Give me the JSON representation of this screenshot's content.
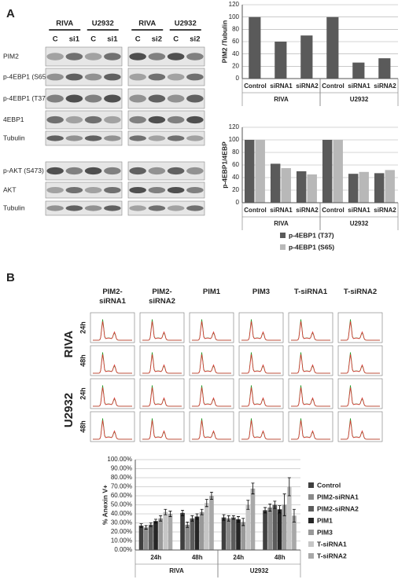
{
  "panel_labels": [
    "A",
    "B"
  ],
  "blot": {
    "group_headers": [
      "RIVA",
      "U2932",
      "RIVA",
      "U2932"
    ],
    "lanes": [
      "C",
      "si1",
      "C",
      "si1",
      "C",
      "si2",
      "C",
      "si2"
    ],
    "rows": [
      "PIM2",
      "p-4EBP1 (S65)",
      "p-4EBP1 (T37)",
      "4EBP1",
      "Tubulin",
      "p-AKT (S473)",
      "AKT",
      "Tubulin"
    ]
  },
  "flow": {
    "columns": [
      "PIM2-siRNA1",
      "PIM2-siRNA2",
      "PIM1",
      "PIM3",
      "T-siRNA1",
      "T-siRNA2"
    ],
    "rows": [
      {
        "line": "RIVA",
        "times": [
          "24h",
          "48h"
        ]
      },
      {
        "line": "U2932",
        "times": [
          "24h",
          "48h"
        ]
      }
    ]
  },
  "chart_data": [
    {
      "type": "bar",
      "ylabel": "PIM2 /Tubulin",
      "categories": [
        "Control",
        "siRNA1",
        "siRNA2",
        "Control",
        "siRNA1",
        "siRNA2"
      ],
      "groups": [
        "RIVA",
        "U2932"
      ],
      "values": [
        100,
        60,
        70,
        100,
        26,
        33
      ],
      "color": "#5a5a5a",
      "ylim": [
        0,
        120
      ],
      "yticks": [
        0,
        20,
        40,
        60,
        80,
        100,
        120
      ],
      "grid": true
    },
    {
      "type": "bar",
      "ylabel": "p-4EBP1/4EBP",
      "categories": [
        "Control",
        "siRNA1",
        "siRNA2",
        "Control",
        "siRNA1",
        "siRNA2"
      ],
      "groups": [
        "RIVA",
        "U2932"
      ],
      "series": [
        {
          "name": "p-4EBP1 (T37)",
          "color": "#5a5a5a",
          "values": [
            100,
            62,
            50,
            100,
            46,
            47
          ]
        },
        {
          "name": "p-4EBP1 (S65)",
          "color": "#b8b8b8",
          "values": [
            100,
            55,
            45,
            100,
            49,
            52
          ]
        }
      ],
      "ylim": [
        0,
        120
      ],
      "yticks": [
        0,
        20,
        40,
        60,
        80,
        100,
        120
      ],
      "grid": true,
      "legend": "bottom"
    },
    {
      "type": "bar",
      "ylabel": "% Anexin V+",
      "categories": [
        "24h",
        "48h",
        "24h",
        "48h"
      ],
      "groups": [
        "RIVA",
        "U2932"
      ],
      "series": [
        {
          "name": "Control",
          "color": "#3f3f3f",
          "values": [
            27,
            41,
            36,
            44
          ],
          "errors": [
            2,
            3,
            3,
            3
          ]
        },
        {
          "name": "PIM2-siRNA1",
          "color": "#8a8a8a",
          "values": [
            25,
            28,
            35,
            47
          ],
          "errors": [
            2,
            3,
            3,
            4
          ]
        },
        {
          "name": "PIM2-siRNA2",
          "color": "#5c5c5c",
          "values": [
            28,
            35,
            36,
            50
          ],
          "errors": [
            2,
            3,
            2,
            4
          ]
        },
        {
          "name": "PIM1",
          "color": "#262626",
          "values": [
            32,
            37,
            34,
            45
          ],
          "errors": [
            2,
            3,
            3,
            4
          ]
        },
        {
          "name": "PIM3",
          "color": "#999999",
          "values": [
            35,
            42,
            31,
            50
          ],
          "errors": [
            3,
            3,
            4,
            12
          ]
        },
        {
          "name": "T-siRNA1",
          "color": "#c6c6c6",
          "values": [
            42,
            52,
            50,
            70
          ],
          "errors": [
            3,
            4,
            5,
            10
          ]
        },
        {
          "name": "T-siRNA2",
          "color": "#a8a8a8",
          "values": [
            40,
            60,
            68,
            38
          ],
          "errors": [
            3,
            4,
            6,
            7
          ]
        }
      ],
      "ylim": [
        0,
        100
      ],
      "yticks": [
        {
          "value": 0,
          "label": "0.00%"
        },
        {
          "value": 10,
          "label": "10.00%"
        },
        {
          "value": 20,
          "label": "20.00%"
        },
        {
          "value": 30,
          "label": "30.00%"
        },
        {
          "value": 40,
          "label": "40.00%"
        },
        {
          "value": 50,
          "label": "50.00%"
        },
        {
          "value": 60,
          "label": "60.00%"
        },
        {
          "value": 70,
          "label": "70.00%"
        },
        {
          "value": 80,
          "label": "80.00%"
        },
        {
          "value": 90,
          "label": "90.00%"
        },
        {
          "value": 100,
          "label": "100.00%"
        }
      ],
      "grid": true,
      "legend": "right"
    }
  ]
}
